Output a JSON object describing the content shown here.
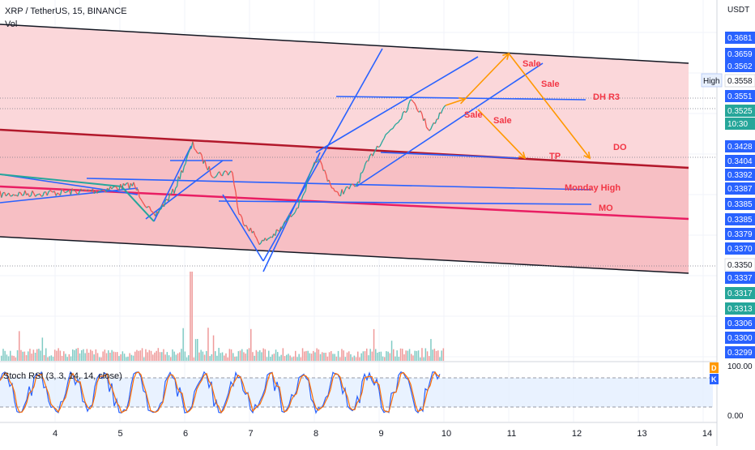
{
  "header": {
    "symbol_line": "XRP / TetherUS, 15, BINANCE",
    "volume_label": "Vol",
    "currency": "USDT"
  },
  "stoch": {
    "label": "Stoch RSI (3, 3, 14, 14, close)",
    "scale": [
      "100.00",
      "0.00"
    ],
    "badges": [
      "D",
      "K"
    ]
  },
  "chart_data": {
    "type": "line",
    "x_ticks": [
      "4",
      "5",
      "6",
      "7",
      "8",
      "9",
      "10",
      "11",
      "12",
      "13",
      "14"
    ],
    "price_labels": [
      {
        "value": "0.3681",
        "color": "#2962ff"
      },
      {
        "value": "0.3659",
        "color": "#2962ff"
      },
      {
        "value": "0.3562",
        "color": "#2962ff"
      },
      {
        "value": "0.3558",
        "color": "#ffffff",
        "text": "#131722",
        "tag": "High"
      },
      {
        "value": "0.3551",
        "color": "#2962ff"
      },
      {
        "value": "0.3525",
        "color": "#26a69a"
      },
      {
        "value": "10:30",
        "color": "#26a69a"
      },
      {
        "value": "0.3428",
        "color": "#2962ff"
      },
      {
        "value": "0.3404",
        "color": "#2962ff"
      },
      {
        "value": "0.3392",
        "color": "#2962ff"
      },
      {
        "value": "0.3387",
        "color": "#2962ff"
      },
      {
        "value": "0.3385",
        "color": "#2962ff"
      },
      {
        "value": "0.3385",
        "color": "#2962ff"
      },
      {
        "value": "0.3379",
        "color": "#2962ff"
      },
      {
        "value": "0.3370",
        "color": "#2962ff"
      },
      {
        "value": "0.3350",
        "color": "#ffffff",
        "text": "#131722"
      },
      {
        "value": "0.3337",
        "color": "#2962ff"
      },
      {
        "value": "0.3317",
        "color": "#26a69a"
      },
      {
        "value": "0.3313",
        "color": "#26a69a"
      },
      {
        "value": "0.3306",
        "color": "#2962ff"
      },
      {
        "value": "0.3300",
        "color": "#2962ff"
      },
      {
        "value": "0.3299",
        "color": "#2962ff"
      }
    ],
    "annotations": [
      {
        "text": "Sale",
        "color": "#f23645"
      },
      {
        "text": "Sale",
        "color": "#f23645"
      },
      {
        "text": "Sale",
        "color": "#f23645"
      },
      {
        "text": "Sale",
        "color": "#f23645"
      },
      {
        "text": "DH R3",
        "color": "#f23645"
      },
      {
        "text": "DO",
        "color": "#f23645"
      },
      {
        "text": "TP",
        "color": "#f23645"
      },
      {
        "text": "Monday High",
        "color": "#f23645"
      },
      {
        "text": "MO",
        "color": "#f23645"
      }
    ],
    "colors": {
      "up": "#26a69a",
      "down": "#ef5350",
      "channel": "#f8c8cc",
      "trend": "#2962ff",
      "arrow": "#ff9800",
      "stoch_k": "#2962ff",
      "stoch_d": "#ff6d00"
    }
  }
}
